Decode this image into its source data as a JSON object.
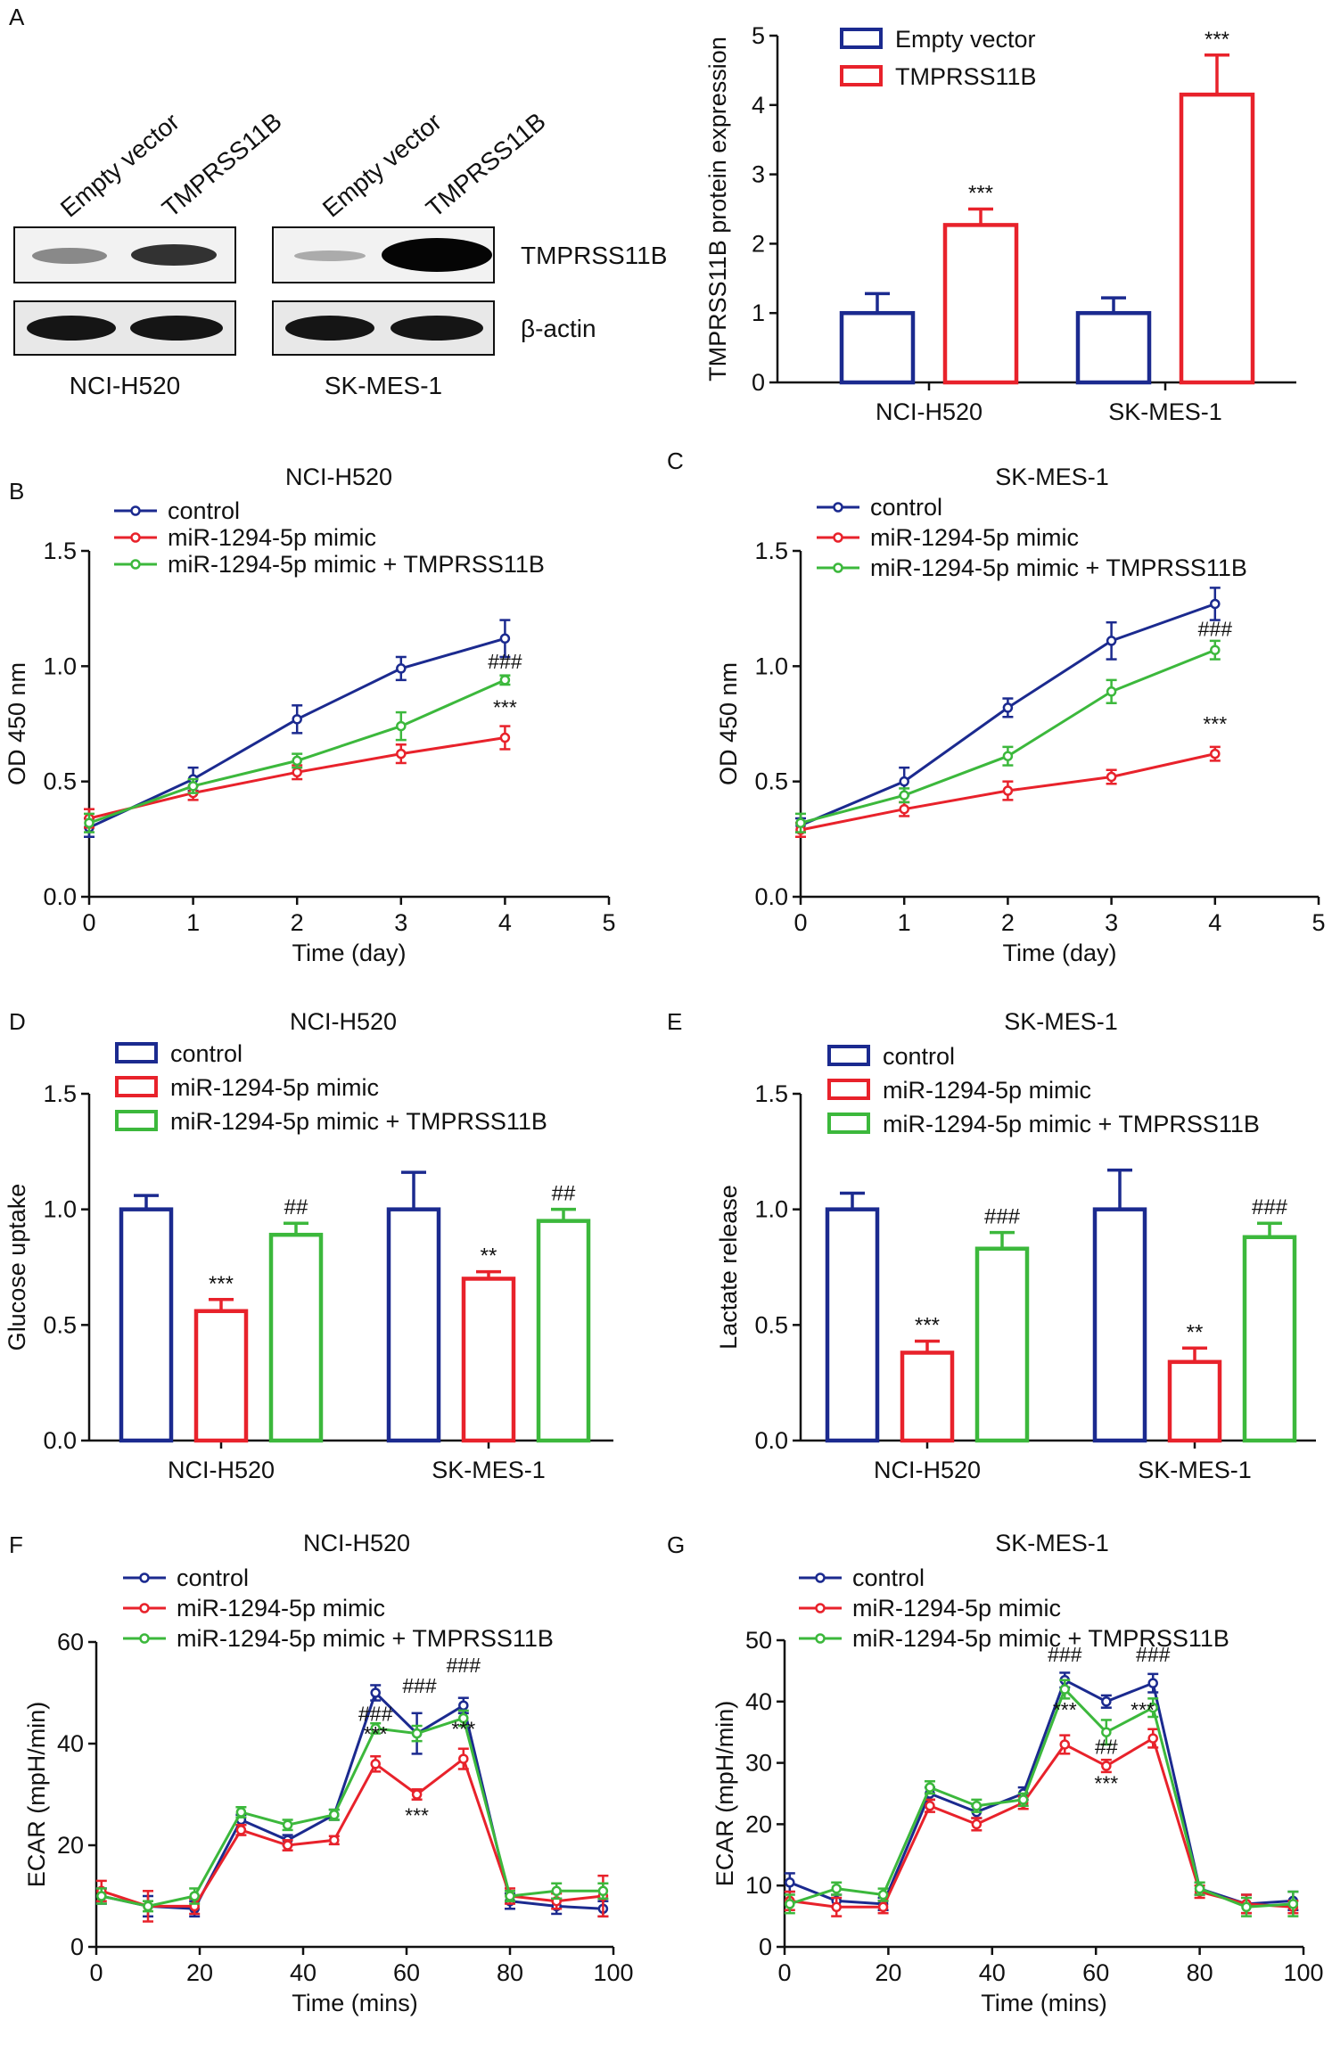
{
  "colors": {
    "blue": "#1b2a8f",
    "red": "#e8222b",
    "green": "#3cb83c",
    "axis": "#111111"
  },
  "panel_letters": [
    "A",
    "B",
    "C",
    "D",
    "E",
    "F",
    "G"
  ],
  "western_blot": {
    "lanes": [
      "Empty vector",
      "TMPRSS11B",
      "Empty vector",
      "TMPRSS11B"
    ],
    "rows": [
      "TMPRSS11B",
      "β-actin"
    ],
    "cell_lines": [
      "NCI-H520",
      "SK-MES-1"
    ]
  },
  "chart_data": [
    {
      "id": "A",
      "type": "bar",
      "title": "",
      "xlabel": "",
      "ylabel": "TMPRSS11B protein expression",
      "ylim": [
        0,
        5
      ],
      "yticks": [
        0,
        1,
        2,
        3,
        4,
        5
      ],
      "categories": [
        "NCI-H520",
        "SK-MES-1"
      ],
      "series": [
        {
          "name": "Empty vector",
          "color": "blue",
          "values": [
            1.0,
            1.0
          ],
          "errors": [
            0.28,
            0.22
          ],
          "labels": [
            "",
            ""
          ]
        },
        {
          "name": "TMPRSS11B",
          "color": "red",
          "values": [
            2.27,
            4.15
          ],
          "errors": [
            0.23,
            0.57
          ],
          "labels": [
            "***",
            "***"
          ]
        }
      ]
    },
    {
      "id": "B",
      "type": "line",
      "title": "NCI-H520",
      "xlabel": "Time (day)",
      "ylabel": "OD 450 nm",
      "xlim": [
        0,
        5
      ],
      "xticks": [
        0,
        1,
        2,
        3,
        4,
        5
      ],
      "ylim": [
        0,
        1.5
      ],
      "yticks": [
        "0.0",
        "0.5",
        "1.0",
        "1.5"
      ],
      "x": [
        0,
        1,
        2,
        3,
        4
      ],
      "series": [
        {
          "name": "control",
          "color": "blue",
          "values": [
            0.3,
            0.51,
            0.77,
            0.99,
            1.12
          ],
          "errors": [
            0.04,
            0.05,
            0.06,
            0.05,
            0.08
          ]
        },
        {
          "name": "miR-1294-5p mimic",
          "color": "red",
          "values": [
            0.34,
            0.45,
            0.54,
            0.62,
            0.69
          ],
          "errors": [
            0.04,
            0.03,
            0.03,
            0.04,
            0.05
          ]
        },
        {
          "name": "miR-1294-5p mimic + TMPRSS11B",
          "color": "green",
          "values": [
            0.32,
            0.48,
            0.59,
            0.74,
            0.94
          ],
          "errors": [
            0.04,
            0.03,
            0.03,
            0.06,
            0.02
          ]
        }
      ],
      "annotations": [
        {
          "text": "###",
          "x": 4,
          "y": 0.99
        },
        {
          "text": "***",
          "x": 4,
          "y": 0.79
        }
      ]
    },
    {
      "id": "C",
      "type": "line",
      "title": "SK-MES-1",
      "xlabel": "Time (day)",
      "ylabel": "OD 450 nm",
      "xlim": [
        0,
        5
      ],
      "xticks": [
        0,
        1,
        2,
        3,
        4,
        5
      ],
      "ylim": [
        0,
        1.5
      ],
      "yticks": [
        "0.0",
        "0.5",
        "1.0",
        "1.5"
      ],
      "x": [
        0,
        1,
        2,
        3,
        4
      ],
      "series": [
        {
          "name": "control",
          "color": "blue",
          "values": [
            0.31,
            0.5,
            0.82,
            1.11,
            1.27
          ],
          "errors": [
            0.03,
            0.06,
            0.04,
            0.08,
            0.07
          ]
        },
        {
          "name": "miR-1294-5p mimic",
          "color": "red",
          "values": [
            0.29,
            0.38,
            0.46,
            0.52,
            0.62
          ],
          "errors": [
            0.03,
            0.03,
            0.04,
            0.03,
            0.03
          ]
        },
        {
          "name": "miR-1294-5p mimic + TMPRSS11B",
          "color": "green",
          "values": [
            0.32,
            0.44,
            0.61,
            0.89,
            1.07
          ],
          "errors": [
            0.04,
            0.03,
            0.04,
            0.05,
            0.04
          ]
        }
      ],
      "annotations": [
        {
          "text": "###",
          "x": 4,
          "y": 1.13
        },
        {
          "text": "***",
          "x": 4,
          "y": 0.72
        }
      ]
    },
    {
      "id": "D",
      "type": "bar",
      "title": "NCI-H520",
      "xlabel": "",
      "ylabel": "Glucose uptake",
      "ylim": [
        0,
        1.5
      ],
      "yticks": [
        "0.0",
        "0.5",
        "1.0",
        "1.5"
      ],
      "categories": [
        "NCI-H520",
        "SK-MES-1"
      ],
      "series": [
        {
          "name": "control",
          "color": "blue",
          "values": [
            1.0,
            1.0
          ],
          "errors": [
            0.06,
            0.16
          ],
          "labels": [
            "",
            ""
          ]
        },
        {
          "name": "miR-1294-5p mimic",
          "color": "red",
          "values": [
            0.56,
            0.7
          ],
          "errors": [
            0.05,
            0.03
          ],
          "labels": [
            "***",
            "**"
          ]
        },
        {
          "name": "miR-1294-5p mimic + TMPRSS11B",
          "color": "green",
          "values": [
            0.89,
            0.95
          ],
          "errors": [
            0.05,
            0.05
          ],
          "labels": [
            "##",
            "##"
          ]
        }
      ]
    },
    {
      "id": "E",
      "type": "bar",
      "title": "SK-MES-1",
      "xlabel": "",
      "ylabel": "Lactate release",
      "ylim": [
        0,
        1.5
      ],
      "yticks": [
        "0.0",
        "0.5",
        "1.0",
        "1.5"
      ],
      "categories": [
        "NCI-H520",
        "SK-MES-1"
      ],
      "series": [
        {
          "name": "control",
          "color": "blue",
          "values": [
            1.0,
            1.0
          ],
          "errors": [
            0.07,
            0.17
          ],
          "labels": [
            "",
            ""
          ]
        },
        {
          "name": "miR-1294-5p mimic",
          "color": "red",
          "values": [
            0.38,
            0.34
          ],
          "errors": [
            0.05,
            0.06
          ],
          "labels": [
            "***",
            "**"
          ]
        },
        {
          "name": "miR-1294-5p mimic + TMPRSS11B",
          "color": "green",
          "values": [
            0.83,
            0.88
          ],
          "errors": [
            0.07,
            0.06
          ],
          "labels": [
            "###",
            "###"
          ]
        }
      ]
    },
    {
      "id": "F",
      "type": "line",
      "title": "NCI-H520",
      "xlabel": "Time (mins)",
      "ylabel": "ECAR (mpH/min)",
      "xlim": [
        0,
        100
      ],
      "xticks": [
        0,
        20,
        40,
        60,
        80,
        100
      ],
      "ylim": [
        0,
        60
      ],
      "yticks": [
        0,
        20,
        40,
        60
      ],
      "x": [
        1,
        10,
        19,
        28,
        37,
        46,
        54,
        62,
        71,
        80,
        89,
        98
      ],
      "series": [
        {
          "name": "control",
          "color": "blue",
          "values": [
            10,
            8,
            7.5,
            25,
            21,
            26,
            50,
            42,
            47.5,
            9,
            8,
            7.5
          ],
          "errors": [
            1.5,
            2,
            1.5,
            1,
            1,
            1,
            1.5,
            4,
            1.5,
            1.5,
            1.5,
            1.5
          ]
        },
        {
          "name": "miR-1294-5p mimic",
          "color": "red",
          "values": [
            11,
            8,
            8,
            23,
            20,
            21,
            36,
            30,
            37,
            10,
            9,
            10
          ],
          "errors": [
            2,
            3,
            1.5,
            1,
            1,
            0.8,
            1.5,
            1,
            2,
            1.5,
            1.5,
            4
          ]
        },
        {
          "name": "miR-1294-5p mimic + TMPRSS11B",
          "color": "green",
          "values": [
            10,
            8,
            10,
            26.5,
            24,
            26,
            43,
            42,
            45,
            10,
            11,
            11
          ],
          "errors": [
            1.5,
            1,
            1.5,
            1,
            1,
            1,
            1,
            1.5,
            1.5,
            1,
            1.5,
            1.5
          ]
        }
      ],
      "annotations": [
        {
          "text": "###",
          "x": 54,
          "y": 44.5
        },
        {
          "text": "###",
          "x": 62.5,
          "y": 50
        },
        {
          "text": "###",
          "x": 71,
          "y": 54
        },
        {
          "text": "***",
          "x": 54,
          "y": 40.5
        },
        {
          "text": "***",
          "x": 71,
          "y": 41.5
        },
        {
          "text": "***",
          "x": 62,
          "y": 24.5
        }
      ]
    },
    {
      "id": "G",
      "type": "line",
      "title": "SK-MES-1",
      "xlabel": "Time (mins)",
      "ylabel": "ECAR (mpH/min)",
      "xlim": [
        0,
        100
      ],
      "xticks": [
        0,
        20,
        40,
        60,
        80,
        100
      ],
      "ylim": [
        0,
        50
      ],
      "yticks": [
        0,
        10,
        20,
        30,
        40,
        50
      ],
      "x": [
        1,
        10,
        19,
        28,
        37,
        46,
        54,
        62,
        71,
        80,
        89,
        98
      ],
      "series": [
        {
          "name": "control",
          "color": "blue",
          "values": [
            10.5,
            7.5,
            7,
            25,
            22,
            25,
            43.5,
            40,
            43,
            9.5,
            7,
            7.5
          ],
          "errors": [
            1.5,
            1,
            1,
            1,
            1,
            1,
            1.2,
            1,
            1.5,
            1,
            1.5,
            1.5
          ]
        },
        {
          "name": "miR-1294-5p mimic",
          "color": "red",
          "values": [
            7.5,
            6.5,
            6.5,
            23,
            20,
            23.5,
            33,
            29.5,
            34,
            9,
            7,
            6.5
          ],
          "errors": [
            1.5,
            1.5,
            1,
            1,
            1,
            1,
            1.5,
            1,
            1.5,
            1,
            1.5,
            1
          ]
        },
        {
          "name": "miR-1294-5p mimic + TMPRSS11B",
          "color": "green",
          "values": [
            7,
            9.5,
            8.5,
            26,
            23,
            24,
            42,
            35,
            39,
            9.5,
            6.5,
            7
          ],
          "errors": [
            1.5,
            1,
            1,
            1,
            1,
            1,
            1.5,
            2,
            1.5,
            1,
            1.5,
            2
          ]
        }
      ],
      "annotations": [
        {
          "text": "###",
          "x": 54,
          "y": 46.5
        },
        {
          "text": "###",
          "x": 71,
          "y": 46.5
        },
        {
          "text": "***",
          "x": 54,
          "y": 37.5
        },
        {
          "text": "##",
          "x": 62,
          "y": 31.5
        },
        {
          "text": "***",
          "x": 62,
          "y": 25.5
        },
        {
          "text": "***",
          "x": 69,
          "y": 37.5
        }
      ]
    }
  ]
}
